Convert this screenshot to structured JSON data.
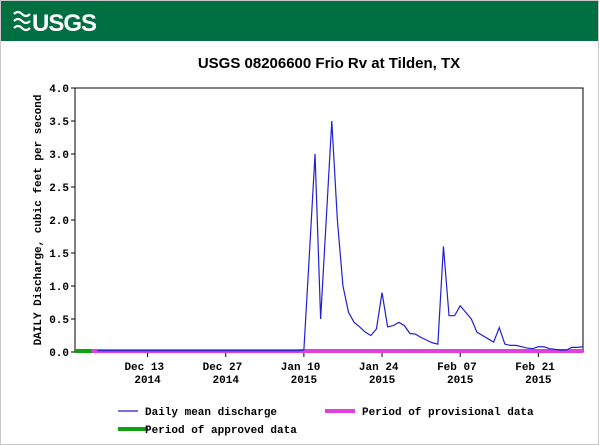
{
  "header": {
    "logo": "USGS"
  },
  "chart_data": {
    "type": "line",
    "title": "USGS 08206600 Frio Rv at Tilden, TX",
    "ylabel": "DAILY Discharge, cubic feet per second",
    "xlim": [
      "2014-11-30",
      "2015-03-01"
    ],
    "ylim": [
      0,
      4
    ],
    "yticks": [
      {
        "value": 0,
        "label": "0.0"
      },
      0.5,
      {
        "value": 1,
        "label": "1.0"
      },
      1.5,
      {
        "value": 2,
        "label": "2.0"
      },
      2.5,
      {
        "value": 3,
        "label": "3.0"
      },
      3.5,
      {
        "value": 4,
        "label": "4.0"
      }
    ],
    "xticks": [
      {
        "value": "2014-12-13",
        "label": "Dec 13 2014"
      },
      {
        "value": "2014-12-27",
        "label": "Dec 27 2014"
      },
      {
        "value": "2015-01-10",
        "label": "Jan 10 2015"
      },
      {
        "value": "2015-01-24",
        "label": "Jan 24 2015"
      },
      {
        "value": "2015-02-07",
        "label": "Feb 07 2015"
      },
      {
        "value": "2015-02-21",
        "label": "Feb 21 2015"
      }
    ],
    "grid": false,
    "x": [
      "2014-12-04",
      "2014-12-05",
      "2014-12-06",
      "2014-12-07",
      "2014-12-08",
      "2014-12-09",
      "2014-12-10",
      "2014-12-11",
      "2014-12-12",
      "2014-12-13",
      "2014-12-14",
      "2014-12-15",
      "2014-12-16",
      "2014-12-17",
      "2014-12-18",
      "2014-12-19",
      "2014-12-20",
      "2014-12-21",
      "2014-12-22",
      "2014-12-23",
      "2014-12-24",
      "2014-12-25",
      "2014-12-26",
      "2014-12-27",
      "2014-12-28",
      "2014-12-29",
      "2014-12-30",
      "2014-12-31",
      "2015-01-01",
      "2015-01-02",
      "2015-01-03",
      "2015-01-04",
      "2015-01-05",
      "2015-01-06",
      "2015-01-07",
      "2015-01-08",
      "2015-01-09",
      "2015-01-10",
      "2015-01-11",
      "2015-01-12",
      "2015-01-13",
      "2015-01-14",
      "2015-01-15",
      "2015-01-16",
      "2015-01-17",
      "2015-01-18",
      "2015-01-19",
      "2015-01-20",
      "2015-01-21",
      "2015-01-22",
      "2015-01-23",
      "2015-01-24",
      "2015-01-25",
      "2015-01-26",
      "2015-01-27",
      "2015-01-28",
      "2015-01-29",
      "2015-01-30",
      "2015-01-31",
      "2015-02-01",
      "2015-02-02",
      "2015-02-03",
      "2015-02-04",
      "2015-02-05",
      "2015-02-06",
      "2015-02-07",
      "2015-02-08",
      "2015-02-09",
      "2015-02-10",
      "2015-02-11",
      "2015-02-12",
      "2015-02-13",
      "2015-02-14",
      "2015-02-15",
      "2015-02-16",
      "2015-02-17",
      "2015-02-18",
      "2015-02-19",
      "2015-02-20",
      "2015-02-21",
      "2015-02-22",
      "2015-02-23",
      "2015-02-24",
      "2015-02-25",
      "2015-02-26",
      "2015-02-27",
      "2015-02-28",
      "2015-03-01"
    ],
    "series": [
      {
        "name": "Daily mean discharge",
        "color": "#2020d0",
        "values": [
          0.02,
          0.02,
          0.02,
          0.02,
          0.02,
          0.02,
          0.02,
          0.02,
          0.02,
          0.02,
          0.02,
          0.02,
          0.02,
          0.02,
          0.02,
          0.02,
          0.02,
          0.02,
          0.02,
          0.02,
          0.02,
          0.02,
          0.02,
          0.02,
          0.02,
          0.02,
          0.02,
          0.02,
          0.02,
          0.02,
          0.02,
          0.02,
          0.02,
          0.02,
          0.02,
          0.02,
          0.02,
          0.03,
          1.5,
          3.0,
          0.5,
          2.0,
          3.5,
          2.0,
          1.0,
          0.6,
          0.45,
          0.38,
          0.3,
          0.25,
          0.35,
          0.9,
          0.38,
          0.4,
          0.45,
          0.4,
          0.28,
          0.27,
          0.22,
          0.18,
          0.14,
          0.12,
          1.6,
          0.55,
          0.55,
          0.7,
          0.6,
          0.5,
          0.3,
          0.25,
          0.2,
          0.15,
          0.37,
          0.12,
          0.1,
          0.1,
          0.08,
          0.06,
          0.05,
          0.08,
          0.08,
          0.05,
          0.04,
          0.03,
          0.03,
          0.07,
          0.07,
          0.08
        ]
      }
    ],
    "periods": [
      {
        "name": "Period of provisional data",
        "color": "#e040e0",
        "start": "2014-12-03",
        "end": "2015-03-01"
      },
      {
        "name": "Period of approved data",
        "color": "#10a010",
        "start": "2014-11-30",
        "end": "2014-12-03"
      }
    ]
  }
}
